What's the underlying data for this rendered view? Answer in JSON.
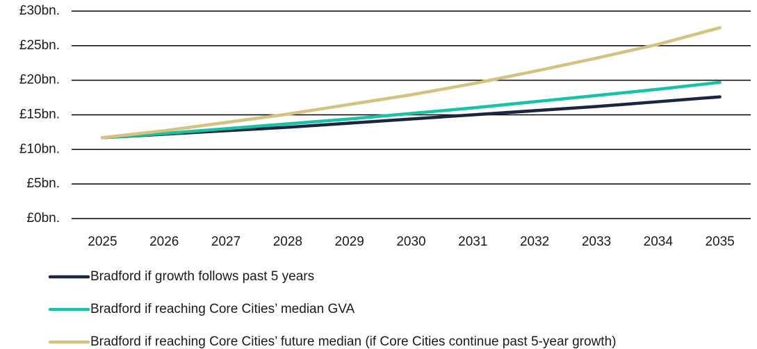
{
  "chart_data": {
    "type": "line",
    "categories": [
      "2025",
      "2026",
      "2027",
      "2028",
      "2029",
      "2030",
      "2031",
      "2032",
      "2033",
      "2034",
      "2035"
    ],
    "series": [
      {
        "name": "Bradford if growth follows past 5 years",
        "color": "#1c2541",
        "values": [
          11.7,
          12.2,
          12.7,
          13.2,
          13.8,
          14.4,
          15.0,
          15.6,
          16.2,
          16.9,
          17.6
        ]
      },
      {
        "name": "Bradford if reaching Core Cities’ median GVA",
        "color": "#17c3a5",
        "values": [
          11.7,
          12.3,
          13.0,
          13.7,
          14.4,
          15.2,
          16.0,
          16.9,
          17.8,
          18.7,
          19.7
        ]
      },
      {
        "name": "Bradford if reaching Core Cities’ future median (if Core Cities continue past 5-year growth)",
        "color": "#d4c27f",
        "values": [
          11.7,
          12.7,
          13.9,
          15.1,
          16.5,
          17.9,
          19.5,
          21.3,
          23.2,
          25.2,
          27.6
        ]
      }
    ],
    "ylim": [
      0,
      30
    ],
    "yticks": [
      {
        "value": 0,
        "label": "£0bn."
      },
      {
        "value": 5,
        "label": "£5bn."
      },
      {
        "value": 10,
        "label": "£10bn."
      },
      {
        "value": 15,
        "label": "£15bn."
      },
      {
        "value": 20,
        "label": "£20bn."
      },
      {
        "value": 25,
        "label": "£25bn."
      },
      {
        "value": 30,
        "label": "£30bn."
      }
    ],
    "grid": true,
    "legend": "bottom"
  }
}
